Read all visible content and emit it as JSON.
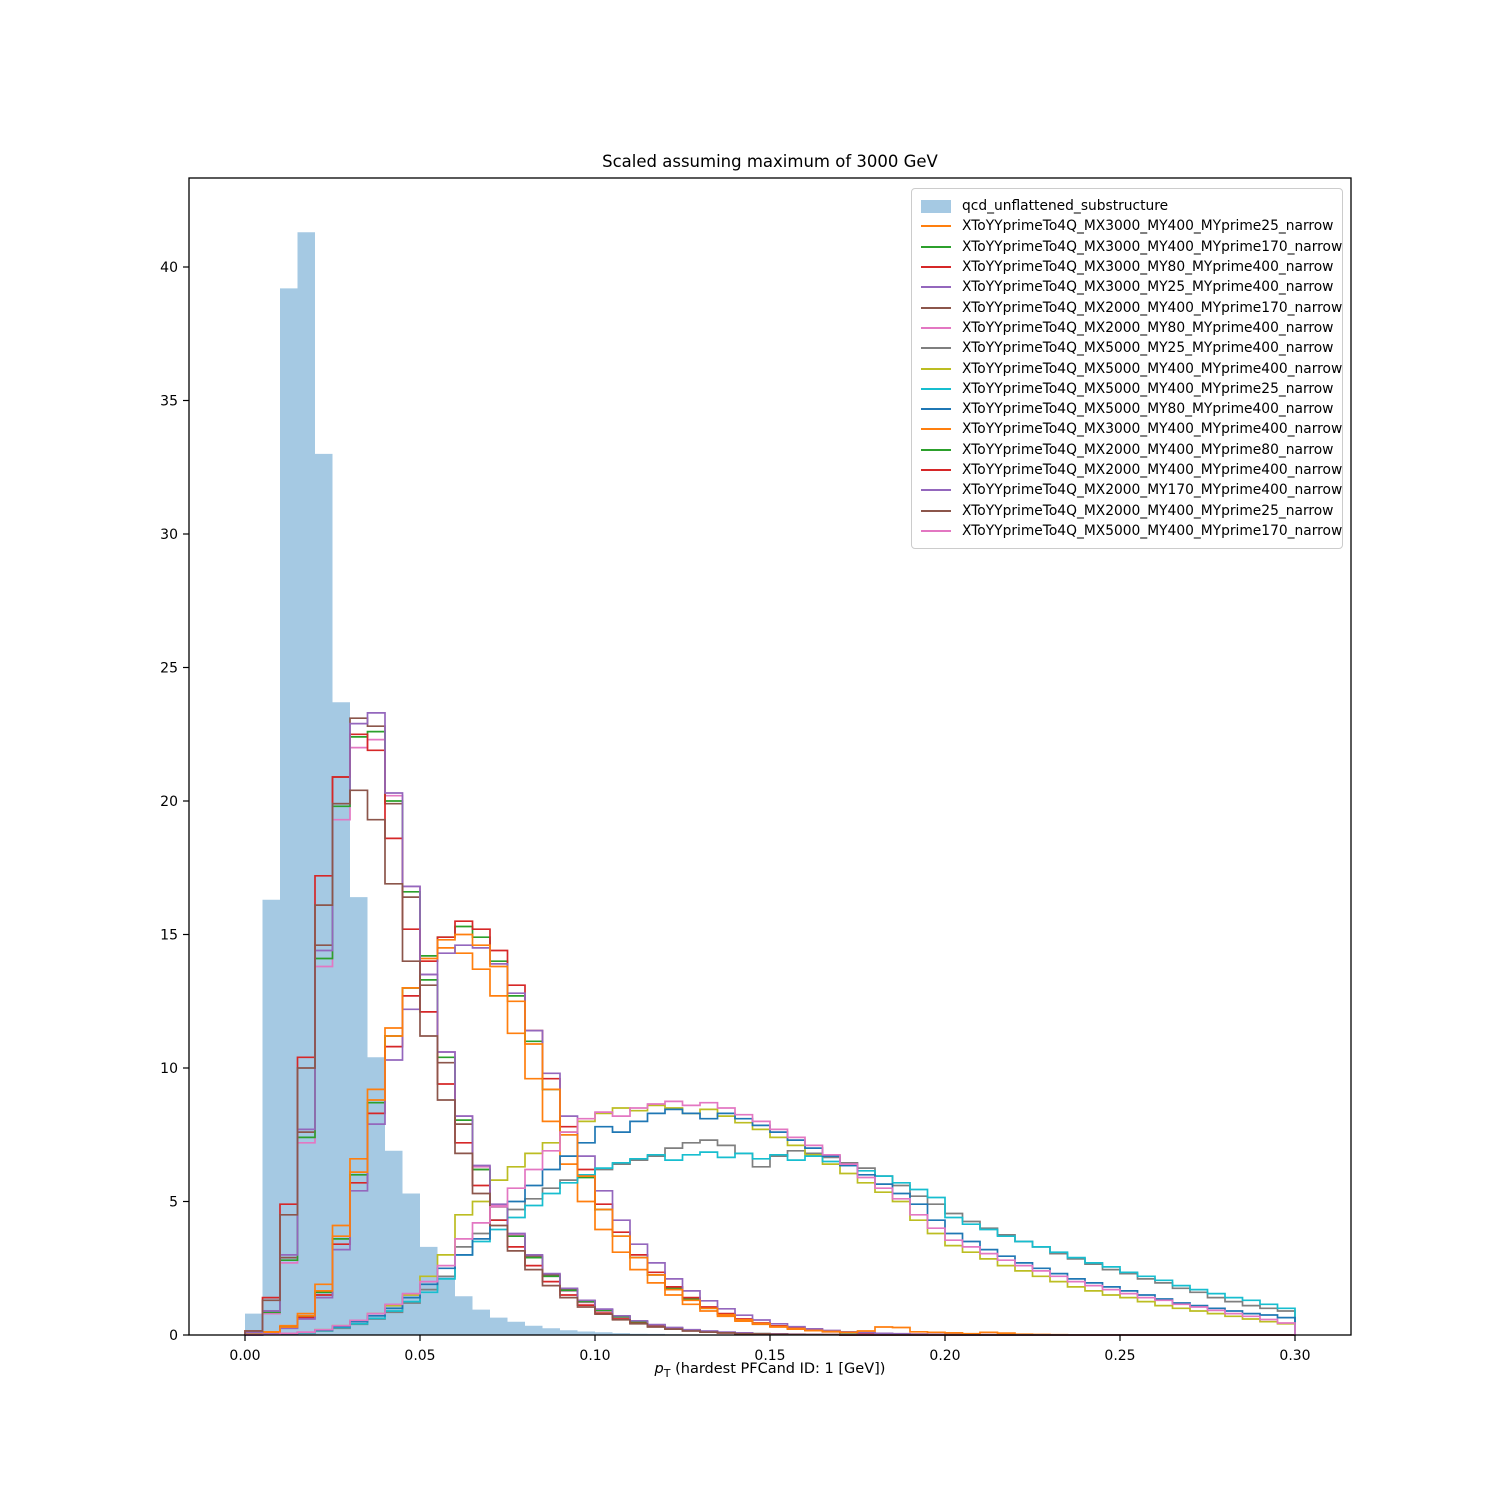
{
  "chart_data": {
    "type": "histogram-step",
    "title": "Scaled assuming maximum of 3000 GeV",
    "xlabel": {
      "symbol": "p",
      "subscript": "T",
      "rest": " (hardest PFCand ID: 1 [GeV])"
    },
    "ylabel": "",
    "grid": false,
    "legend_position": "upper right",
    "bin_width": 0.005,
    "bin_range": [
      0.0,
      0.3
    ],
    "xlim": [
      -0.016,
      0.316
    ],
    "ylim": [
      0,
      43.3
    ],
    "x_ticks": [
      0.0,
      0.05,
      0.1,
      0.15,
      0.2,
      0.25,
      0.3
    ],
    "x_tick_labels": [
      "0.00",
      "0.05",
      "0.10",
      "0.15",
      "0.20",
      "0.25",
      "0.30"
    ],
    "y_ticks": [
      0,
      5,
      10,
      15,
      20,
      25,
      30,
      35,
      40
    ],
    "y_tick_labels": [
      "0",
      "5",
      "10",
      "15",
      "20",
      "25",
      "30",
      "35",
      "40"
    ],
    "series": [
      {
        "label": "qcd_unflattened_substructure",
        "type": "fill",
        "color": "#a5c9e3",
        "values": [
          0.8,
          16.3,
          39.2,
          41.3,
          33.0,
          23.7,
          16.4,
          10.4,
          6.9,
          5.3,
          3.3,
          2.2,
          1.45,
          0.95,
          0.65,
          0.5,
          0.35,
          0.25,
          0.18,
          0.13,
          0.1,
          0.07,
          0.05,
          0.04,
          0.03,
          0.02,
          0.02,
          0.01,
          0.01,
          0.01,
          0,
          0,
          0,
          0,
          0,
          0,
          0,
          0,
          0,
          0,
          0,
          0,
          0,
          0,
          0,
          0,
          0,
          0,
          0,
          0,
          0,
          0,
          0,
          0,
          0,
          0,
          0,
          0,
          0,
          0
        ]
      },
      {
        "label": "XToYYprimeTo4Q_MX3000_MY400_MYprime25_narrow",
        "type": "step",
        "color": "#ff7f0e",
        "values": [
          0.02,
          0.12,
          0.35,
          0.8,
          1.9,
          4.1,
          6.6,
          9.2,
          11.5,
          13.0,
          14.0,
          14.5,
          14.3,
          13.7,
          12.7,
          11.3,
          9.6,
          8.0,
          6.4,
          5.0,
          3.95,
          3.1,
          2.45,
          1.95,
          1.5,
          1.15,
          0.9,
          0.7,
          0.52,
          0.4,
          0.3,
          0.22,
          0.16,
          0.12,
          0.09,
          0.07,
          0.05,
          0.04,
          0.03,
          0.02,
          0.01,
          0.01,
          0.01,
          0,
          0,
          0,
          0,
          0,
          0,
          0,
          0,
          0,
          0,
          0,
          0,
          0,
          0,
          0,
          0,
          0
        ]
      },
      {
        "label": "XToYYprimeTo4Q_MX3000_MY400_MYprime170_narrow",
        "type": "step",
        "color": "#2ca02c",
        "values": [
          0.02,
          0.1,
          0.3,
          0.7,
          1.6,
          3.6,
          6.0,
          8.7,
          11.2,
          13.0,
          14.2,
          14.9,
          15.3,
          14.9,
          14.0,
          12.7,
          11.0,
          9.2,
          7.5,
          5.9,
          4.7,
          3.7,
          2.9,
          2.25,
          1.75,
          1.35,
          1.0,
          0.78,
          0.58,
          0.44,
          0.33,
          0.24,
          0.18,
          0.13,
          0.09,
          0.07,
          0.05,
          0.03,
          0.02,
          0.02,
          0.01,
          0.01,
          0,
          0,
          0,
          0,
          0,
          0,
          0,
          0,
          0,
          0,
          0,
          0,
          0,
          0,
          0,
          0,
          0,
          0
        ]
      },
      {
        "label": "XToYYprimeTo4Q_MX3000_MY80_MYprime400_narrow",
        "type": "step",
        "color": "#d62728",
        "values": [
          0.02,
          0.1,
          0.28,
          0.65,
          1.5,
          3.4,
          5.7,
          8.3,
          10.8,
          12.7,
          14.0,
          14.9,
          15.5,
          15.2,
          14.4,
          13.1,
          11.4,
          9.6,
          7.8,
          6.2,
          4.9,
          3.85,
          3.0,
          2.35,
          1.8,
          1.4,
          1.05,
          0.8,
          0.6,
          0.45,
          0.34,
          0.25,
          0.18,
          0.13,
          0.1,
          0.07,
          0.05,
          0.04,
          0.03,
          0.02,
          0.01,
          0.01,
          0.01,
          0,
          0,
          0,
          0,
          0,
          0,
          0,
          0,
          0,
          0,
          0,
          0,
          0,
          0,
          0,
          0,
          0
        ]
      },
      {
        "label": "XToYYprimeTo4Q_MX3000_MY25_MYprime400_narrow",
        "type": "step",
        "color": "#9467bd",
        "values": [
          0.02,
          0.09,
          0.25,
          0.6,
          1.4,
          3.2,
          5.4,
          7.9,
          10.3,
          12.2,
          13.5,
          14.3,
          14.6,
          14.5,
          13.9,
          12.8,
          11.4,
          9.8,
          8.2,
          6.7,
          5.4,
          4.3,
          3.4,
          2.7,
          2.1,
          1.65,
          1.28,
          0.98,
          0.74,
          0.56,
          0.42,
          0.31,
          0.23,
          0.17,
          0.12,
          0.09,
          0.06,
          0.05,
          0.03,
          0.02,
          0.02,
          0.01,
          0.01,
          0,
          0,
          0,
          0,
          0,
          0,
          0,
          0,
          0,
          0,
          0,
          0,
          0,
          0,
          0,
          0,
          0
        ]
      },
      {
        "label": "XToYYprimeTo4Q_MX2000_MY400_MYprime170_narrow",
        "type": "step",
        "color": "#8c564b",
        "values": [
          0.1,
          0.9,
          2.9,
          7.6,
          14.6,
          20.9,
          23.1,
          22.8,
          19.9,
          16.4,
          13.1,
          10.2,
          7.9,
          6.2,
          4.8,
          3.7,
          2.95,
          2.25,
          1.7,
          1.28,
          0.95,
          0.7,
          0.5,
          0.37,
          0.27,
          0.19,
          0.14,
          0.1,
          0.07,
          0.05,
          0.03,
          0.02,
          0.02,
          0.01,
          0.01,
          0,
          0,
          0,
          0,
          0,
          0,
          0,
          0,
          0,
          0,
          0,
          0,
          0,
          0,
          0,
          0,
          0,
          0,
          0,
          0,
          0,
          0,
          0,
          0,
          0
        ]
      },
      {
        "label": "XToYYprimeTo4Q_MX2000_MY80_MYprime400_narrow",
        "type": "step",
        "color": "#e377c2",
        "values": [
          0.1,
          0.8,
          2.7,
          7.2,
          13.8,
          19.3,
          22.0,
          22.3,
          20.2,
          16.8,
          13.5,
          10.6,
          8.2,
          6.3,
          4.85,
          3.75,
          2.9,
          2.2,
          1.65,
          1.22,
          0.9,
          0.66,
          0.48,
          0.35,
          0.25,
          0.18,
          0.13,
          0.09,
          0.06,
          0.04,
          0.03,
          0.02,
          0.01,
          0.01,
          0,
          0,
          0,
          0,
          0,
          0,
          0,
          0,
          0,
          0,
          0,
          0,
          0,
          0,
          0,
          0,
          0,
          0,
          0,
          0,
          0,
          0,
          0,
          0,
          0,
          0
        ]
      },
      {
        "label": "XToYYprimeTo4Q_MX5000_MY25_MYprime400_narrow",
        "type": "step",
        "color": "#7f7f7f",
        "values": [
          0,
          0.01,
          0.04,
          0.08,
          0.15,
          0.25,
          0.4,
          0.6,
          0.85,
          1.2,
          1.7,
          2.2,
          3.3,
          3.8,
          4.3,
          4.7,
          5.1,
          5.5,
          5.8,
          6.0,
          6.2,
          6.4,
          6.55,
          6.7,
          7.0,
          7.2,
          7.3,
          7.1,
          6.8,
          6.3,
          6.7,
          6.9,
          6.8,
          6.65,
          6.45,
          6.25,
          5.95,
          5.6,
          5.2,
          4.9,
          4.55,
          4.25,
          4.0,
          3.75,
          3.5,
          3.3,
          3.05,
          2.85,
          2.65,
          2.45,
          2.3,
          2.1,
          1.95,
          1.75,
          1.6,
          1.4,
          1.25,
          1.1,
          1.0,
          0.9
        ]
      },
      {
        "label": "XToYYprimeTo4Q_MX5000_MY400_MYprime400_narrow",
        "type": "step",
        "color": "#bcbd22",
        "values": [
          0,
          0.02,
          0.05,
          0.1,
          0.2,
          0.35,
          0.55,
          0.8,
          1.1,
          1.5,
          2.2,
          3.0,
          4.5,
          5.0,
          5.8,
          6.3,
          6.8,
          7.2,
          7.6,
          8.0,
          8.3,
          8.5,
          8.4,
          8.6,
          8.5,
          8.3,
          8.45,
          8.2,
          7.95,
          7.7,
          7.4,
          7.1,
          6.75,
          6.4,
          6.05,
          5.7,
          5.35,
          5.0,
          4.3,
          3.8,
          3.35,
          3.1,
          2.85,
          2.6,
          2.4,
          2.2,
          2.0,
          1.8,
          1.65,
          1.5,
          1.4,
          1.25,
          1.1,
          1.0,
          0.9,
          0.8,
          0.7,
          0.6,
          0.5,
          0.42
        ]
      },
      {
        "label": "XToYYprimeTo4Q_MX5000_MY400_MYprime25_narrow",
        "type": "step",
        "color": "#17becf",
        "values": [
          0,
          0.01,
          0.04,
          0.09,
          0.16,
          0.28,
          0.42,
          0.62,
          0.9,
          1.25,
          1.6,
          2.1,
          3.0,
          3.5,
          3.95,
          4.4,
          4.85,
          5.3,
          5.7,
          6.0,
          6.25,
          6.45,
          6.6,
          6.75,
          6.55,
          6.75,
          6.85,
          6.65,
          6.8,
          6.6,
          6.75,
          6.55,
          6.7,
          6.5,
          6.35,
          6.15,
          5.95,
          5.7,
          5.45,
          5.15,
          4.4,
          4.15,
          3.95,
          3.7,
          3.5,
          3.3,
          3.1,
          2.9,
          2.7,
          2.55,
          2.35,
          2.2,
          2.05,
          1.85,
          1.7,
          1.55,
          1.4,
          1.3,
          1.15,
          1.0
        ]
      },
      {
        "label": "XToYYprimeTo4Q_MX5000_MY80_MYprime400_narrow",
        "type": "step",
        "color": "#1f77b4",
        "values": [
          0,
          0.02,
          0.05,
          0.1,
          0.18,
          0.32,
          0.5,
          0.72,
          1.0,
          1.4,
          1.9,
          2.5,
          3.0,
          3.6,
          4.3,
          5.0,
          5.6,
          6.2,
          6.7,
          7.2,
          7.8,
          7.6,
          8.0,
          8.3,
          8.45,
          8.3,
          8.1,
          8.3,
          8.1,
          7.85,
          7.6,
          7.3,
          7.0,
          6.7,
          6.35,
          6.0,
          5.65,
          5.3,
          4.9,
          4.3,
          3.8,
          3.5,
          3.2,
          2.95,
          2.7,
          2.5,
          2.3,
          2.1,
          1.95,
          1.8,
          1.65,
          1.5,
          1.35,
          1.2,
          1.1,
          1.0,
          0.9,
          0.8,
          0.75,
          0.65
        ]
      },
      {
        "label": "XToYYprimeTo4Q_MX3000_MY400_MYprime400_narrow",
        "type": "step",
        "color": "#ff7f0e",
        "values": [
          0.02,
          0.11,
          0.3,
          0.72,
          1.65,
          3.7,
          6.1,
          8.8,
          11.2,
          13.0,
          14.1,
          14.8,
          15.0,
          14.6,
          13.8,
          12.5,
          10.9,
          9.2,
          7.5,
          5.95,
          4.7,
          3.7,
          2.9,
          2.25,
          1.7,
          1.3,
          1.0,
          0.76,
          0.57,
          0.43,
          0.32,
          0.24,
          0.17,
          0.13,
          0.1,
          0.15,
          0.3,
          0.28,
          0.12,
          0.1,
          0.08,
          0.05,
          0.1,
          0.07,
          0.03,
          0.02,
          0.01,
          0,
          0,
          0,
          0,
          0,
          0,
          0,
          0,
          0,
          0,
          0,
          0,
          0
        ]
      },
      {
        "label": "XToYYprimeTo4Q_MX2000_MY400_MYprime80_narrow",
        "type": "step",
        "color": "#2ca02c",
        "values": [
          0.1,
          0.85,
          2.8,
          7.4,
          14.1,
          19.8,
          22.4,
          22.6,
          20.0,
          16.6,
          13.3,
          10.4,
          8.05,
          6.2,
          4.8,
          3.7,
          2.9,
          2.2,
          1.67,
          1.25,
          0.92,
          0.68,
          0.5,
          0.36,
          0.26,
          0.19,
          0.13,
          0.1,
          0.07,
          0.05,
          0.03,
          0.02,
          0.02,
          0.01,
          0.01,
          0,
          0,
          0,
          0,
          0,
          0,
          0,
          0,
          0,
          0,
          0,
          0,
          0,
          0,
          0,
          0,
          0,
          0,
          0,
          0,
          0,
          0,
          0,
          0,
          0
        ]
      },
      {
        "label": "XToYYprimeTo4Q_MX2000_MY400_MYprime400_narrow",
        "type": "step",
        "color": "#d62728",
        "values": [
          0.15,
          1.4,
          4.9,
          10.4,
          17.2,
          20.9,
          22.5,
          21.9,
          18.6,
          15.2,
          12.1,
          9.4,
          7.2,
          5.6,
          4.3,
          3.3,
          2.6,
          2.0,
          1.5,
          1.12,
          0.82,
          0.6,
          0.44,
          0.32,
          0.23,
          0.16,
          0.12,
          0.08,
          0.06,
          0.04,
          0.03,
          0.02,
          0.01,
          0.01,
          0,
          0,
          0,
          0,
          0,
          0,
          0,
          0,
          0,
          0,
          0,
          0,
          0,
          0,
          0,
          0,
          0,
          0,
          0,
          0,
          0,
          0,
          0,
          0,
          0,
          0
        ]
      },
      {
        "label": "XToYYprimeTo4Q_MX2000_MY170_MYprime400_narrow",
        "type": "step",
        "color": "#9467bd",
        "values": [
          0.1,
          0.9,
          3.0,
          7.7,
          14.4,
          19.9,
          22.9,
          23.3,
          20.3,
          16.8,
          13.5,
          10.6,
          8.2,
          6.35,
          4.9,
          3.8,
          3.0,
          2.3,
          1.75,
          1.3,
          0.97,
          0.72,
          0.53,
          0.39,
          0.28,
          0.2,
          0.15,
          0.11,
          0.08,
          0.05,
          0.04,
          0.03,
          0.02,
          0.01,
          0.01,
          0,
          0,
          0,
          0,
          0,
          0,
          0,
          0,
          0,
          0,
          0,
          0,
          0,
          0,
          0,
          0,
          0,
          0,
          0,
          0,
          0,
          0,
          0,
          0,
          0
        ]
      },
      {
        "label": "XToYYprimeTo4Q_MX2000_MY400_MYprime25_narrow",
        "type": "step",
        "color": "#8c564b",
        "values": [
          0.15,
          1.3,
          4.5,
          10.0,
          16.1,
          19.9,
          20.4,
          19.3,
          16.9,
          14.0,
          11.2,
          8.8,
          6.8,
          5.3,
          4.1,
          3.15,
          2.45,
          1.85,
          1.4,
          1.05,
          0.78,
          0.57,
          0.42,
          0.3,
          0.22,
          0.15,
          0.11,
          0.08,
          0.05,
          0.04,
          0.03,
          0.02,
          0.01,
          0.01,
          0,
          0,
          0,
          0,
          0,
          0,
          0,
          0,
          0,
          0,
          0,
          0,
          0,
          0,
          0,
          0,
          0,
          0,
          0,
          0,
          0,
          0,
          0,
          0,
          0,
          0
        ]
      },
      {
        "label": "XToYYprimeTo4Q_MX5000_MY400_MYprime170_narrow",
        "type": "step",
        "color": "#e377c2",
        "values": [
          0,
          0.02,
          0.06,
          0.11,
          0.2,
          0.35,
          0.55,
          0.8,
          1.15,
          1.55,
          2.0,
          2.6,
          3.6,
          4.2,
          4.8,
          5.5,
          6.2,
          6.9,
          7.6,
          8.1,
          8.35,
          8.2,
          8.5,
          8.65,
          8.75,
          8.6,
          8.7,
          8.5,
          8.25,
          8.0,
          7.7,
          7.4,
          7.1,
          6.75,
          6.4,
          5.9,
          5.5,
          5.1,
          4.5,
          4.0,
          3.55,
          3.3,
          3.05,
          2.8,
          2.6,
          2.4,
          2.2,
          2.0,
          1.85,
          1.7,
          1.55,
          1.4,
          1.3,
          1.15,
          1.05,
          0.92,
          0.8,
          0.7,
          0.58,
          0.45
        ]
      }
    ]
  }
}
